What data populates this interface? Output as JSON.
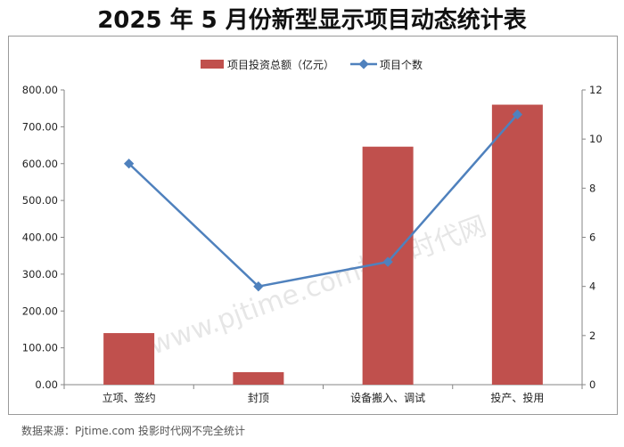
{
  "title": "2025 年 5 月份新型显示项目动态统计表",
  "source": "数据来源：Pjtime.com 投影时代网不完全统计",
  "watermark": "www.pjtime.com投影时代网",
  "colors": {
    "bar": "#C0504D",
    "line": "#4F81BD"
  },
  "chart_data": {
    "type": "bar",
    "categories": [
      "立项、签约",
      "封顶",
      "设备搬入、调试",
      "投产、投用"
    ],
    "series": [
      {
        "name": "项目投资总额（亿元）",
        "type": "bar",
        "axis": "left",
        "values": [
          140,
          34,
          646,
          760
        ]
      },
      {
        "name": "项目个数",
        "type": "line",
        "axis": "right",
        "values": [
          9,
          4,
          5,
          11
        ]
      }
    ],
    "y_left": {
      "range": [
        0,
        800
      ],
      "ticks": [
        "0.00",
        "100.00",
        "200.00",
        "300.00",
        "400.00",
        "500.00",
        "600.00",
        "700.00",
        "800.00"
      ]
    },
    "y_right": {
      "range": [
        0,
        12
      ],
      "ticks": [
        "0",
        "2",
        "4",
        "6",
        "8",
        "10",
        "12"
      ]
    },
    "legend_position": "top",
    "grid": false
  }
}
